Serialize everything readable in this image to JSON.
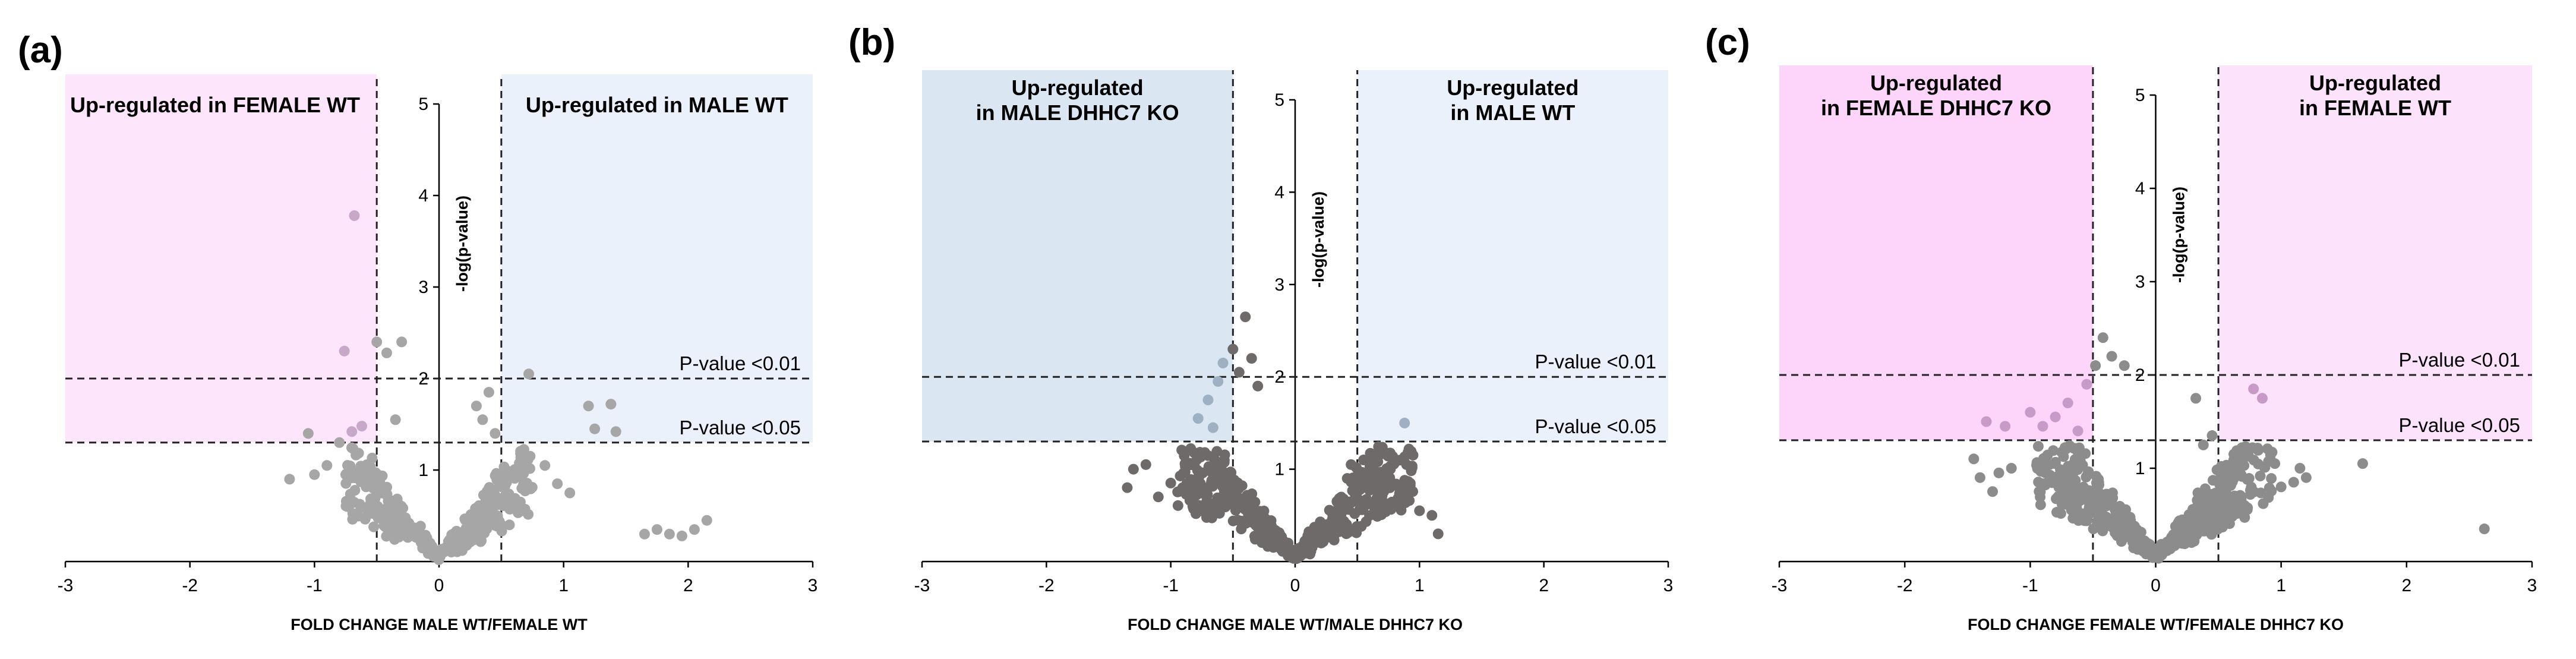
{
  "chart_data": [
    {
      "type": "scatter",
      "panel_label": "(a)",
      "title": "",
      "xlabel": "FOLD CHANGE MALE WT/FEMALE WT",
      "ylabel": "-log(p-value)",
      "xlim": [
        -3,
        3
      ],
      "ylim": [
        0,
        5
      ],
      "x_ticks": [
        "-3",
        "-2",
        "-1",
        "0",
        "1",
        "2",
        "3"
      ],
      "y_ticks": [
        "1",
        "2",
        "3",
        "4",
        "5"
      ],
      "fold_change_cutoffs": [
        -0.5,
        0.5
      ],
      "thresholds": [
        {
          "label": "P-value <0.01",
          "value": 2
        },
        {
          "label": "P-value <0.05",
          "value": 1.3
        }
      ],
      "regions": [
        {
          "lines": [
            "Up-regulated in FEMALE WT"
          ],
          "side": "left",
          "color": "#fde6fb"
        },
        {
          "lines": [
            "Up-regulated in MALE WT"
          ],
          "side": "right",
          "color": "#eaf1fb"
        }
      ],
      "point_color": "#a6a6a6",
      "highlight_color": "#c8a8c8",
      "cloud": {
        "seed": 11,
        "n": 360
      },
      "points": [
        {
          "x": -0.68,
          "y": 3.78,
          "hl": true
        },
        {
          "x": -0.76,
          "y": 2.3,
          "hl": true
        },
        {
          "x": -0.5,
          "y": 2.4
        },
        {
          "x": -0.42,
          "y": 2.28
        },
        {
          "x": -0.3,
          "y": 2.4
        },
        {
          "x": -1.05,
          "y": 1.4
        },
        {
          "x": -0.7,
          "y": 1.42,
          "hl": true
        },
        {
          "x": -0.62,
          "y": 1.48,
          "hl": true
        },
        {
          "x": -0.8,
          "y": 1.3
        },
        {
          "x": -1.2,
          "y": 0.9
        },
        {
          "x": -1.0,
          "y": 0.95
        },
        {
          "x": -0.9,
          "y": 1.05
        },
        {
          "x": 0.4,
          "y": 1.85
        },
        {
          "x": 0.3,
          "y": 1.7
        },
        {
          "x": 0.72,
          "y": 2.05
        },
        {
          "x": 1.2,
          "y": 1.7
        },
        {
          "x": 1.38,
          "y": 1.72
        },
        {
          "x": 1.25,
          "y": 1.45
        },
        {
          "x": 1.42,
          "y": 1.42
        },
        {
          "x": 0.85,
          "y": 1.05
        },
        {
          "x": 0.95,
          "y": 0.85
        },
        {
          "x": 1.05,
          "y": 0.75
        },
        {
          "x": 1.65,
          "y": 0.3
        },
        {
          "x": 1.75,
          "y": 0.35
        },
        {
          "x": 1.85,
          "y": 0.3
        },
        {
          "x": 2.05,
          "y": 0.35
        },
        {
          "x": 2.15,
          "y": 0.45
        },
        {
          "x": 1.95,
          "y": 0.28
        },
        {
          "x": 0.35,
          "y": 1.55
        },
        {
          "x": 0.45,
          "y": 1.4
        },
        {
          "x": -0.35,
          "y": 1.55
        }
      ]
    },
    {
      "type": "scatter",
      "panel_label": "(b)",
      "title": "",
      "xlabel": "FOLD CHANGE MALE WT/MALE DHHC7 KO",
      "ylabel": "-log(p-value)",
      "xlim": [
        -3,
        3
      ],
      "ylim": [
        0,
        5
      ],
      "x_ticks": [
        "-3",
        "-2",
        "-1",
        "0",
        "1",
        "2",
        "3"
      ],
      "y_ticks": [
        "1",
        "2",
        "3",
        "4",
        "5"
      ],
      "fold_change_cutoffs": [
        -0.5,
        0.5
      ],
      "thresholds": [
        {
          "label": "P-value <0.01",
          "value": 2
        },
        {
          "label": "P-value <0.05",
          "value": 1.3
        }
      ],
      "regions": [
        {
          "lines": [
            "Up-regulated",
            "in MALE DHHC7 KO"
          ],
          "side": "left",
          "color": "#dae7f2"
        },
        {
          "lines": [
            "Up-regulated",
            "in MALE WT"
          ],
          "side": "right",
          "color": "#eaf1fb"
        }
      ],
      "point_color": "#6f6a6a",
      "highlight_color": "#9fb0c2",
      "cloud": {
        "seed": 23,
        "n": 560
      },
      "points": [
        {
          "x": -0.4,
          "y": 2.65
        },
        {
          "x": -0.5,
          "y": 2.3
        },
        {
          "x": -0.58,
          "y": 2.15,
          "hl": true
        },
        {
          "x": -0.62,
          "y": 1.95,
          "hl": true
        },
        {
          "x": -0.45,
          "y": 2.05
        },
        {
          "x": -0.7,
          "y": 1.75,
          "hl": true
        },
        {
          "x": -0.78,
          "y": 1.55,
          "hl": true
        },
        {
          "x": -0.66,
          "y": 1.45,
          "hl": true
        },
        {
          "x": -0.35,
          "y": 2.2
        },
        {
          "x": -0.3,
          "y": 1.9
        },
        {
          "x": -1.3,
          "y": 1.0
        },
        {
          "x": -1.35,
          "y": 0.8
        },
        {
          "x": -1.2,
          "y": 1.05
        },
        {
          "x": -1.1,
          "y": 0.7
        },
        {
          "x": -1.0,
          "y": 0.85
        },
        {
          "x": 0.88,
          "y": 1.5,
          "hl": true
        },
        {
          "x": 0.6,
          "y": 0.95
        },
        {
          "x": 0.75,
          "y": 0.8
        },
        {
          "x": 0.9,
          "y": 0.7
        },
        {
          "x": 1.0,
          "y": 0.55
        },
        {
          "x": 1.1,
          "y": 0.5
        },
        {
          "x": 1.15,
          "y": 0.3
        },
        {
          "x": 0.45,
          "y": 1.05
        },
        {
          "x": 0.55,
          "y": 1.1
        }
      ]
    },
    {
      "type": "scatter",
      "panel_label": "(c)",
      "title": "",
      "xlabel": "FOLD CHANGE FEMALE WT/FEMALE DHHC7 KO",
      "ylabel": "-log(p-value)",
      "xlim": [
        -3,
        3
      ],
      "ylim": [
        0,
        5
      ],
      "x_ticks": [
        "-3",
        "-2",
        "-1",
        "0",
        "1",
        "2",
        "3"
      ],
      "y_ticks": [
        "1",
        "2",
        "3",
        "4",
        "5"
      ],
      "fold_change_cutoffs": [
        -0.5,
        0.5
      ],
      "thresholds": [
        {
          "label": "P-value <0.01",
          "value": 2
        },
        {
          "label": "P-value <0.05",
          "value": 1.3
        }
      ],
      "regions": [
        {
          "lines": [
            "Up-regulated",
            "in FEMALE DHHC7 KO"
          ],
          "side": "left",
          "color": "#fdd5fb"
        },
        {
          "lines": [
            "Up-regulated",
            "in FEMALE WT"
          ],
          "side": "right",
          "color": "#fde2fc"
        }
      ],
      "point_color": "#8c8c8c",
      "highlight_color": "#c89ac8",
      "cloud": {
        "seed": 37,
        "n": 620
      },
      "points": [
        {
          "x": -0.42,
          "y": 2.4
        },
        {
          "x": -0.35,
          "y": 2.2
        },
        {
          "x": -0.48,
          "y": 2.1
        },
        {
          "x": -0.55,
          "y": 1.9,
          "hl": true
        },
        {
          "x": -0.7,
          "y": 1.7,
          "hl": true
        },
        {
          "x": -0.8,
          "y": 1.55,
          "hl": true
        },
        {
          "x": -1.0,
          "y": 1.6,
          "hl": true
        },
        {
          "x": -1.35,
          "y": 1.5,
          "hl": true
        },
        {
          "x": -1.2,
          "y": 1.45,
          "hl": true
        },
        {
          "x": -0.9,
          "y": 1.45,
          "hl": true
        },
        {
          "x": -0.62,
          "y": 1.4,
          "hl": true
        },
        {
          "x": -0.25,
          "y": 2.1
        },
        {
          "x": -1.45,
          "y": 1.1
        },
        {
          "x": -1.4,
          "y": 0.9
        },
        {
          "x": -1.25,
          "y": 0.95
        },
        {
          "x": -1.15,
          "y": 1.0
        },
        {
          "x": -1.3,
          "y": 0.75
        },
        {
          "x": 0.78,
          "y": 1.85,
          "hl": true
        },
        {
          "x": 0.85,
          "y": 1.75,
          "hl": true
        },
        {
          "x": 0.32,
          "y": 1.75
        },
        {
          "x": 1.15,
          "y": 1.0
        },
        {
          "x": 1.2,
          "y": 0.9
        },
        {
          "x": 1.1,
          "y": 0.85
        },
        {
          "x": 1.0,
          "y": 0.8
        },
        {
          "x": 1.65,
          "y": 1.05
        },
        {
          "x": 2.62,
          "y": 0.35
        },
        {
          "x": 0.95,
          "y": 1.05
        },
        {
          "x": 0.45,
          "y": 1.35
        },
        {
          "x": 0.38,
          "y": 1.25
        }
      ]
    }
  ]
}
